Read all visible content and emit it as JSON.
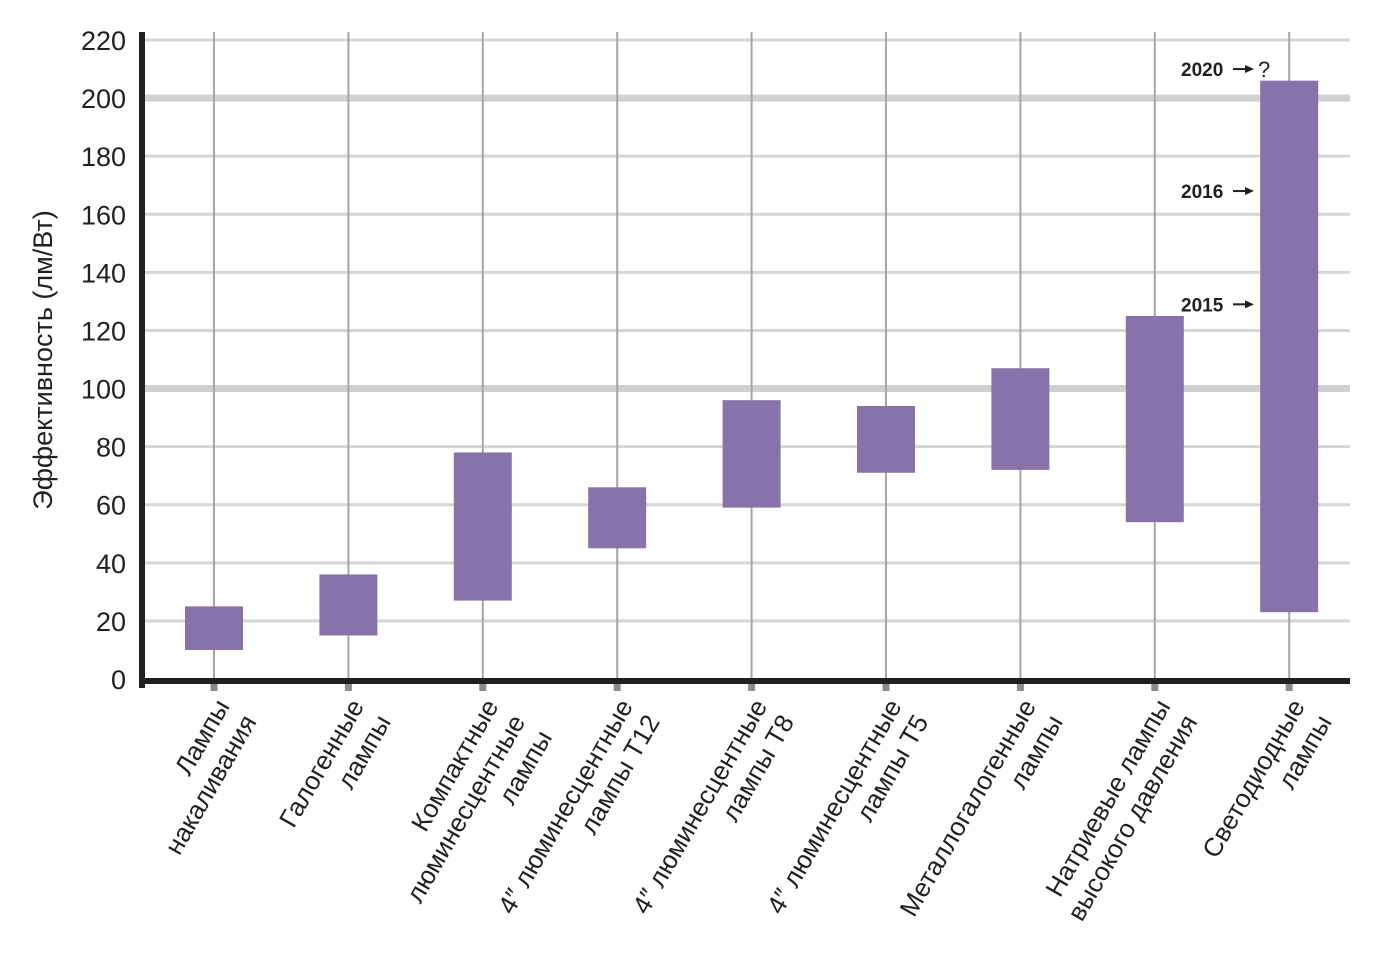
{
  "chart_data": {
    "type": "bar",
    "subtype": "floating-range",
    "ylabel": "Эффективность (лм/Вт)",
    "ylim": [
      0,
      220
    ],
    "yticks": [
      0,
      20,
      40,
      60,
      80,
      100,
      120,
      140,
      160,
      180,
      200,
      220
    ],
    "grid": true,
    "categories": [
      [
        "Лампы",
        "накаливания"
      ],
      [
        "Галогенные",
        "лампы"
      ],
      [
        "Компактные",
        "люминесцентные",
        "лампы"
      ],
      [
        "4″ люминесцентные",
        "лампы Т12"
      ],
      [
        "4″ люминесцентные",
        "лампы Т8"
      ],
      [
        "4″ люминесцентные",
        "лампы Т5"
      ],
      [
        "Металлогалогенные",
        "лампы"
      ],
      [
        "Натриевые лампы",
        "высокого давления"
      ],
      [
        "Светодиодные",
        "лампы"
      ]
    ],
    "ranges": [
      [
        10,
        25
      ],
      [
        15,
        36
      ],
      [
        27,
        78
      ],
      [
        45,
        66
      ],
      [
        59,
        96
      ],
      [
        71,
        94
      ],
      [
        72,
        107
      ],
      [
        54,
        125
      ],
      [
        23,
        206
      ]
    ],
    "annotations": [
      {
        "label": "2015",
        "y": 129
      },
      {
        "label": "2016",
        "y": 168
      },
      {
        "label": "2020",
        "y": 210,
        "suffix": "?"
      }
    ],
    "colors": {
      "bar": "#8872aa",
      "grid": "#d6d6d6",
      "major_grid": "#d0d0d0",
      "category_line": "#a6a6a6",
      "axis": "#231f20",
      "tick_mark": "#8c8c8c"
    }
  }
}
